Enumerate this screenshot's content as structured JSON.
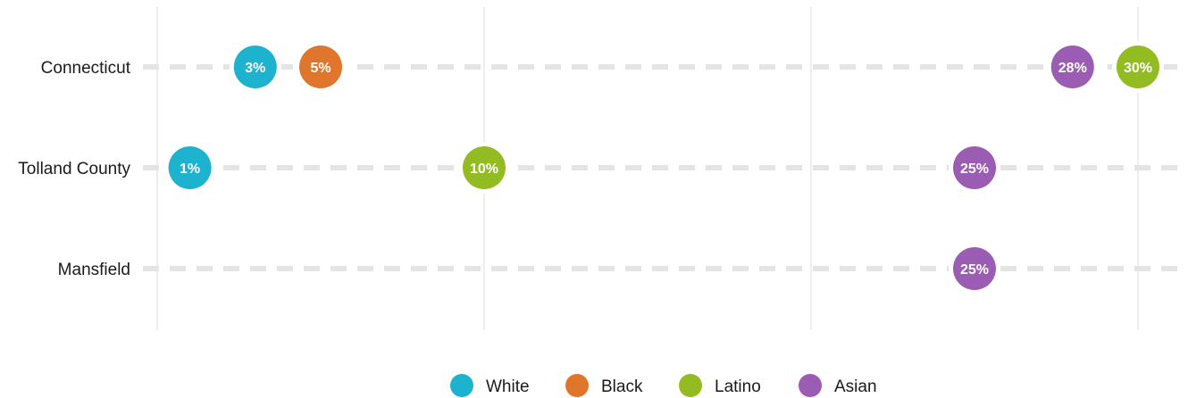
{
  "chart_data": {
    "type": "scatter",
    "title": "",
    "xlabel": "",
    "ylabel": "",
    "xlim": [
      0,
      30
    ],
    "grid": true,
    "legend_position": "bottom",
    "categories": [
      "Connecticut",
      "Tolland County",
      "Mansfield"
    ],
    "series": [
      {
        "name": "White",
        "color": "#1db3cf",
        "values": [
          3,
          1,
          null
        ],
        "labels": [
          "3%",
          "1%",
          null
        ]
      },
      {
        "name": "Black",
        "color": "#e0762c",
        "values": [
          5,
          null,
          null
        ],
        "labels": [
          "5%",
          null,
          null
        ]
      },
      {
        "name": "Latino",
        "color": "#93bb22",
        "values": [
          30,
          10,
          null
        ],
        "labels": [
          "30%",
          "10%",
          null
        ]
      },
      {
        "name": "Asian",
        "color": "#9b5cb3",
        "values": [
          28,
          25,
          25
        ],
        "labels": [
          "28%",
          "25%",
          "25%"
        ]
      }
    ]
  }
}
